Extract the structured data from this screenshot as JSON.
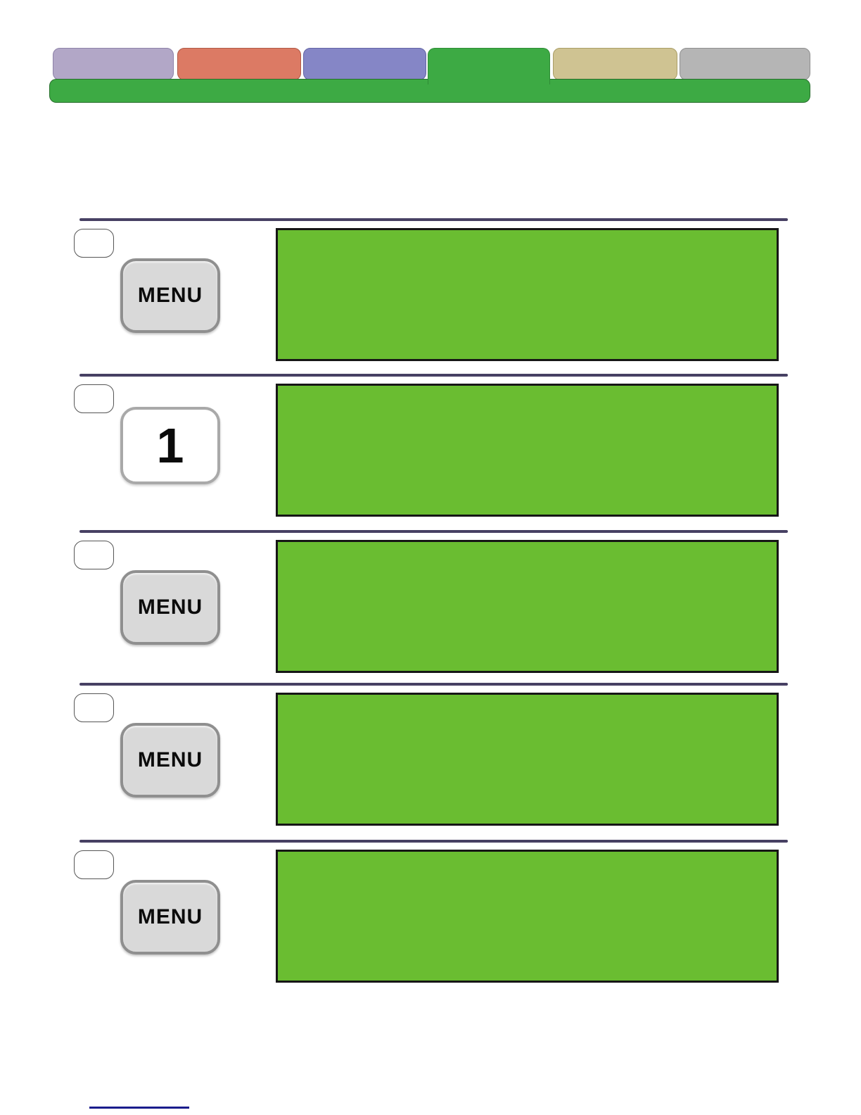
{
  "header": {
    "tabs": [
      {
        "name": "lavender-tab",
        "color": "#b2a7c7",
        "border": "#8d82a8"
      },
      {
        "name": "salmon-tab",
        "color": "#dc7a64",
        "border": "#b05a47"
      },
      {
        "name": "periwinkle-tab",
        "color": "#8586c6",
        "border": "#6365a5"
      },
      {
        "name": "green-active-tab",
        "color": "#3daa44",
        "border": "#2f8c36"
      },
      {
        "name": "tan-tab",
        "color": "#cfc392",
        "border": "#a99d65"
      },
      {
        "name": "gray-tab",
        "color": "#b5b5b5",
        "border": "#8f8f8f"
      }
    ],
    "bar_color": "#3daa44"
  },
  "steps": [
    {
      "button_label": "MENU",
      "button_style": "menu"
    },
    {
      "button_label": "1",
      "button_style": "numkey"
    },
    {
      "button_label": "MENU",
      "button_style": "menu"
    },
    {
      "button_label": "MENU",
      "button_style": "menu"
    },
    {
      "button_label": "MENU",
      "button_style": "menu"
    }
  ],
  "colors": {
    "screen_green": "#6abd31",
    "screen_border": "#161616",
    "divider": "#474063",
    "footnote_rule": "#1a1c8c"
  }
}
